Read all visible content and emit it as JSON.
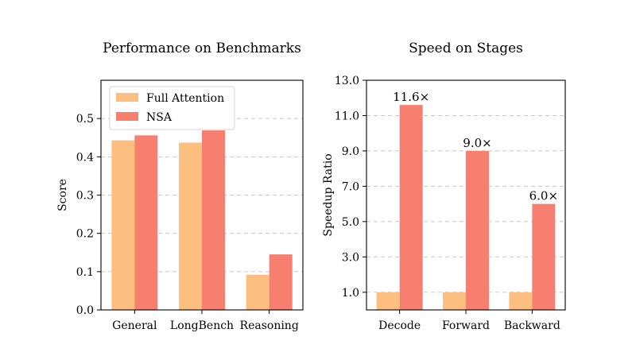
{
  "colors": {
    "full_attention": "#FDBF7F",
    "nsa": "#F67F70"
  },
  "chart_data": [
    {
      "type": "bar",
      "title": "Performance on Benchmarks",
      "xlabel": "",
      "ylabel": "Score",
      "categories": [
        "General",
        "LongBench",
        "Reasoning"
      ],
      "series": [
        {
          "name": "Full Attention",
          "values": [
            0.443,
            0.437,
            0.092
          ]
        },
        {
          "name": "NSA",
          "values": [
            0.456,
            0.469,
            0.145
          ]
        }
      ],
      "ylim": [
        0,
        0.6
      ],
      "yticks": [
        0.0,
        0.1,
        0.2,
        0.3,
        0.4,
        0.5
      ],
      "ytick_labels": [
        "0.0",
        "0.1",
        "0.2",
        "0.3",
        "0.4",
        "0.5"
      ],
      "grid": true,
      "legend": "top-left"
    },
    {
      "type": "bar",
      "title": "Speed on Stages",
      "xlabel": "",
      "ylabel": "Speedup Ratio",
      "categories": [
        "Decode",
        "Forward",
        "Backward"
      ],
      "series": [
        {
          "name": "Full Attention",
          "values": [
            1.0,
            1.0,
            1.0
          ]
        },
        {
          "name": "NSA",
          "values": [
            11.6,
            9.0,
            6.0
          ],
          "labels": [
            "11.6×",
            "9.0×",
            "6.0×"
          ]
        }
      ],
      "ylim": [
        0,
        13.0
      ],
      "yticks": [
        1.0,
        3.0,
        5.0,
        7.0,
        9.0,
        11.0,
        13.0
      ],
      "ytick_labels": [
        "1.0",
        "3.0",
        "5.0",
        "7.0",
        "9.0",
        "11.0",
        "13.0"
      ],
      "grid": true
    }
  ]
}
